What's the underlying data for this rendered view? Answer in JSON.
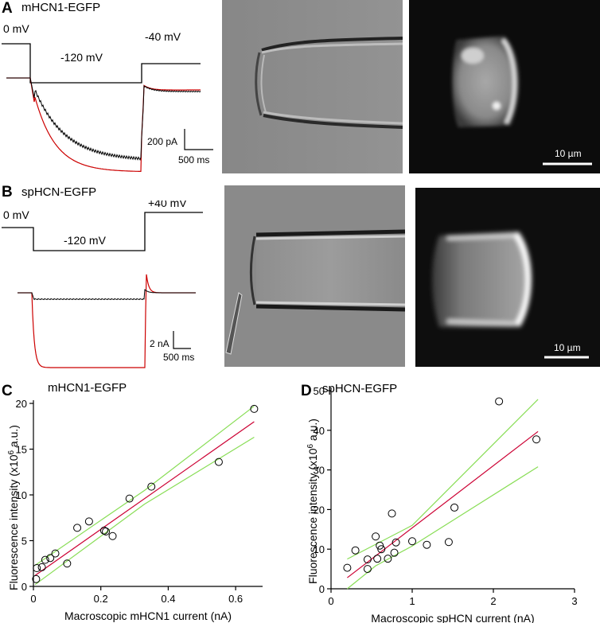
{
  "panels": {
    "A": {
      "label": "A",
      "title": "mHCN1-EGFP",
      "v_hold": "0 mV",
      "v_step": "-120 mV",
      "v_tail": "-40 mV",
      "scale_y": "200 pA",
      "scale_x": "500 ms",
      "image_scale": "10 µm"
    },
    "B": {
      "label": "B",
      "title": "spHCN-EGFP",
      "v_hold": "0 mV",
      "v_step": "-120 mV",
      "v_tail": "+40 mV",
      "scale_y": "2 nA",
      "scale_x": "500 ms",
      "image_scale": "10 µm"
    }
  },
  "colors": {
    "trace_black": "#000000",
    "trace_red": "#cc0000",
    "fit_line": "#cc0033",
    "ci_line": "#88dd55"
  },
  "chart_data": [
    {
      "id": "C",
      "label": "C",
      "title": "mHCN1-EGFP",
      "type": "scatter",
      "xlabel": "Macroscopic mHCN1 current (nA)",
      "ylabel": "Fluorescence intensity (x10^6 a.u.)",
      "xlim": [
        0,
        0.68
      ],
      "ylim": [
        0,
        20
      ],
      "xticks": [
        0,
        0.2,
        0.4,
        0.6
      ],
      "xtick_labels": [
        "0",
        "0.2",
        "0.4",
        "0.6"
      ],
      "yticks": [
        0,
        5,
        10,
        15,
        20
      ],
      "ytick_labels": [
        "0",
        "5",
        "10",
        "15",
        "20"
      ],
      "points": [
        [
          0.008,
          0.8
        ],
        [
          0.01,
          2.0
        ],
        [
          0.025,
          2.1
        ],
        [
          0.035,
          2.9
        ],
        [
          0.05,
          3.1
        ],
        [
          0.065,
          3.6
        ],
        [
          0.1,
          2.5
        ],
        [
          0.13,
          6.4
        ],
        [
          0.165,
          7.1
        ],
        [
          0.21,
          6.1
        ],
        [
          0.215,
          6.0
        ],
        [
          0.235,
          5.5
        ],
        [
          0.285,
          9.6
        ],
        [
          0.35,
          10.9
        ],
        [
          0.55,
          13.6
        ],
        [
          0.655,
          19.4
        ]
      ],
      "fit": [
        [
          0.005,
          1.2
        ],
        [
          0.655,
          18.0
        ]
      ],
      "ci_upper": [
        [
          0.005,
          2.3
        ],
        [
          0.33,
          10.5
        ],
        [
          0.655,
          19.7
        ]
      ],
      "ci_lower": [
        [
          0.005,
          0.2
        ],
        [
          0.33,
          9.0
        ],
        [
          0.655,
          16.3
        ]
      ]
    },
    {
      "id": "D",
      "label": "D",
      "title": "spHCN-EGFP",
      "type": "scatter",
      "xlabel": "Macroscopic spHCN current (nA)",
      "ylabel": "Fluorescence intensity (x10^6 a.u.)",
      "xlim": [
        0,
        3
      ],
      "ylim": [
        0,
        50
      ],
      "xticks": [
        0,
        1,
        2,
        3
      ],
      "xtick_labels": [
        "0",
        "1",
        "2",
        "3"
      ],
      "yticks": [
        0,
        10,
        20,
        30,
        40,
        50
      ],
      "ytick_labels": [
        "0",
        "10",
        "20",
        "30",
        "40",
        "50"
      ],
      "points": [
        [
          0.2,
          5.3
        ],
        [
          0.3,
          9.7
        ],
        [
          0.45,
          7.4
        ],
        [
          0.45,
          5.0
        ],
        [
          0.55,
          13.2
        ],
        [
          0.57,
          7.6
        ],
        [
          0.6,
          10.9
        ],
        [
          0.62,
          10.0
        ],
        [
          0.7,
          7.6
        ],
        [
          0.75,
          19.0
        ],
        [
          0.78,
          9.1
        ],
        [
          0.8,
          11.7
        ],
        [
          1.0,
          12.0
        ],
        [
          1.18,
          11.1
        ],
        [
          1.45,
          11.8
        ],
        [
          1.52,
          20.5
        ],
        [
          2.07,
          47.3
        ],
        [
          2.53,
          37.7
        ]
      ],
      "fit": [
        [
          0.2,
          2.8
        ],
        [
          2.55,
          39.7
        ]
      ],
      "ci_upper": [
        [
          0.2,
          7.5
        ],
        [
          1.0,
          16.0
        ],
        [
          2.55,
          47.8
        ]
      ],
      "ci_lower": [
        [
          0.2,
          0.0
        ],
        [
          0.55,
          5.8
        ],
        [
          1.0,
          10.8
        ],
        [
          2.55,
          30.8
        ]
      ]
    }
  ]
}
